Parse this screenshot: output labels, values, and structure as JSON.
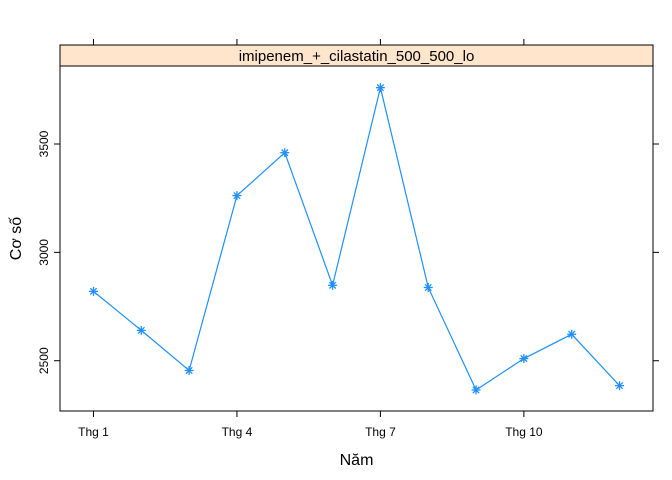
{
  "chart_data": {
    "type": "line",
    "panel_title": "imipenem_+_cilastatin_500_500_lo",
    "xlabel": "Năm",
    "ylabel": "Cơ số",
    "x": [
      1,
      2,
      3,
      4,
      5,
      6,
      7,
      8,
      9,
      10,
      11,
      12
    ],
    "xticks": [
      1,
      4,
      7,
      10
    ],
    "xtick_labels": [
      "Thg 1",
      "Thg 4",
      "Thg 7",
      "Thg 10"
    ],
    "yticks": [
      2500,
      3000,
      3500
    ],
    "ytick_labels": [
      "2500",
      "3000",
      "3500"
    ],
    "xlim": [
      0.3,
      12.7
    ],
    "ylim": [
      2268,
      3860
    ],
    "series": [
      {
        "values": [
          2820,
          2640,
          2455,
          3262,
          3460,
          2848,
          3760,
          2838,
          2365,
          2510,
          2622,
          2385
        ],
        "color": "#1e90ff",
        "marker": "asterisk"
      }
    ],
    "strip_color": "#ffe5cc",
    "grid": false,
    "legend": "none"
  }
}
